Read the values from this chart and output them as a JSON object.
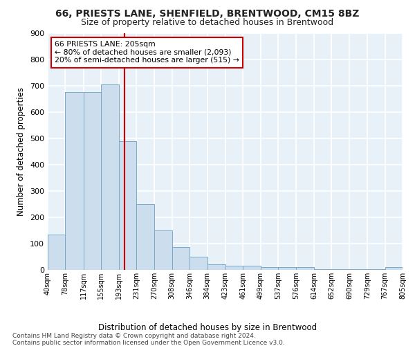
{
  "title_line1": "66, PRIESTS LANE, SHENFIELD, BRENTWOOD, CM15 8BZ",
  "title_line2": "Size of property relative to detached houses in Brentwood",
  "xlabel": "Distribution of detached houses by size in Brentwood",
  "ylabel": "Number of detached properties",
  "bar_color": "#ccdded",
  "bar_edge_color": "#7aaac8",
  "background_color": "#e8f0f8",
  "grid_color": "#ffffff",
  "vline_x": 205,
  "vline_color": "#cc0000",
  "annotation_text": "66 PRIESTS LANE: 205sqm\n← 80% of detached houses are smaller (2,093)\n20% of semi-detached houses are larger (515) →",
  "annotation_box_color": "#ffffff",
  "annotation_box_edge": "#cc0000",
  "footnote1": "Contains HM Land Registry data © Crown copyright and database right 2024.",
  "footnote2": "Contains public sector information licensed under the Open Government Licence v3.0.",
  "bin_edges": [
    40,
    78,
    117,
    155,
    193,
    231,
    270,
    308,
    346,
    384,
    423,
    461,
    499,
    537,
    576,
    614,
    652,
    690,
    729,
    767,
    805
  ],
  "bar_heights": [
    135,
    675,
    675,
    705,
    490,
    250,
    150,
    87,
    50,
    22,
    17,
    17,
    10,
    10,
    10,
    2,
    2,
    2,
    2,
    10
  ],
  "ylim": [
    0,
    900
  ],
  "yticks": [
    0,
    100,
    200,
    300,
    400,
    500,
    600,
    700,
    800,
    900
  ]
}
